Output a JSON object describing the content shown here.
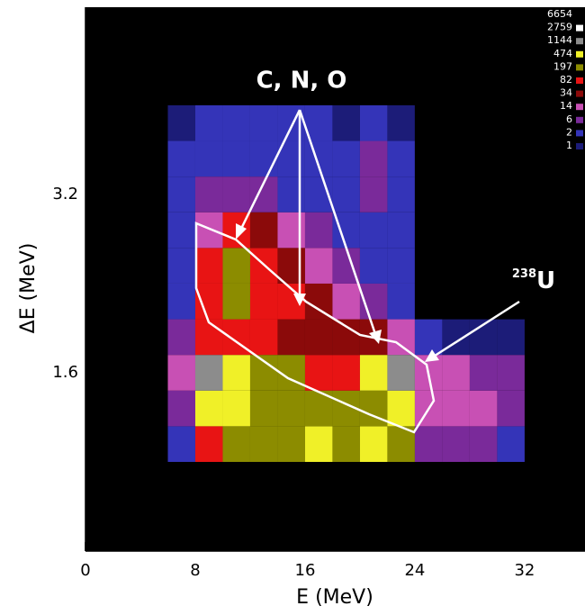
{
  "chart_data": {
    "type": "heatmap",
    "x_label": "E (MeV)",
    "y_label": "ΔE (MeV)",
    "xlim": [
      0,
      36.4
    ],
    "ylim": [
      0,
      4.88
    ],
    "xticks": [
      0,
      8,
      16,
      24,
      32
    ],
    "yticks": [
      1.6,
      3.2
    ],
    "x_minor_step": 1,
    "y_minor_step": 0.1,
    "xbins": [
      6,
      8,
      10,
      12,
      14,
      16,
      18,
      20,
      22,
      24,
      26,
      28,
      30,
      32
    ],
    "ybins": [
      0.8,
      1.12,
      1.44,
      1.76,
      2.08,
      2.4,
      2.72,
      3.04,
      3.36,
      3.68,
      4.0
    ],
    "z": [
      [
        2,
        82,
        200,
        200,
        300,
        500,
        200,
        500,
        300,
        6,
        6,
        6,
        2
      ],
      [
        6,
        500,
        600,
        300,
        200,
        300,
        200,
        200,
        800,
        14,
        14,
        14,
        6
      ],
      [
        14,
        1500,
        800,
        400,
        200,
        100,
        82,
        600,
        1200,
        14,
        14,
        6,
        6
      ],
      [
        6,
        100,
        100,
        82,
        60,
        60,
        40,
        34,
        14,
        2,
        1,
        1,
        1
      ],
      [
        2,
        100,
        200,
        82,
        100,
        40,
        14,
        6,
        2,
        0,
        0,
        0,
        0
      ],
      [
        2,
        100,
        200,
        82,
        40,
        14,
        6,
        2,
        2,
        0,
        0,
        0,
        0
      ],
      [
        2,
        14,
        100,
        40,
        14,
        6,
        2,
        2,
        2,
        0,
        0,
        0,
        0
      ],
      [
        2,
        6,
        6,
        6,
        2,
        2,
        2,
        6,
        2,
        0,
        0,
        0,
        0
      ],
      [
        2,
        2,
        2,
        2,
        2,
        2,
        2,
        6,
        2,
        0,
        0,
        0,
        0
      ],
      [
        1,
        2,
        2,
        2,
        2,
        2,
        1,
        2,
        1,
        0,
        0,
        0,
        0
      ]
    ],
    "colorscale": {
      "levels": [
        1,
        2,
        6,
        14,
        34,
        82,
        197,
        474,
        1144,
        2759,
        6654
      ],
      "colors": [
        "#1c1c78",
        "#3434b8",
        "#7a2a9a",
        "#c850b4",
        "#8b0a0a",
        "#e81414",
        "#8c8c00",
        "#f0f028",
        "#8c8c8c",
        "#ffffff"
      ]
    },
    "annotations": [
      {
        "text": "C, N, O"
      },
      {
        "text": "U",
        "superscript": "238"
      }
    ]
  }
}
